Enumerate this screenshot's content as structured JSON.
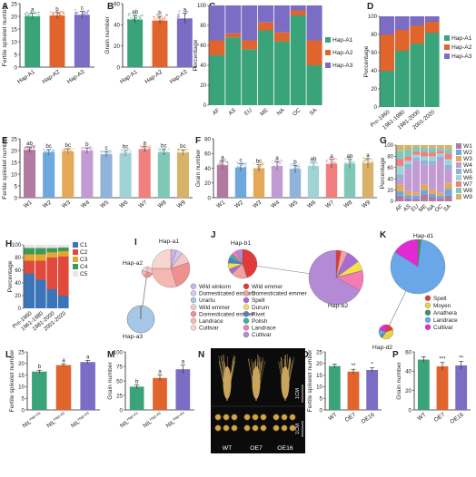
{
  "colors": {
    "hapA1": "#3aa37a",
    "hapA2": "#e0642c",
    "hapA3": "#7b6cc4",
    "W": [
      "#b07aa1",
      "#6fa8dc",
      "#e3a85a",
      "#c39bd3",
      "#8fb3d9",
      "#9fd3d6",
      "#f08080",
      "#7fc8b8",
      "#d9b26a"
    ],
    "C": [
      "#3b74b8",
      "#e04a3c",
      "#e5a52f",
      "#3c9a56",
      "#e7e7e7"
    ]
  },
  "panels": [
    {
      "id": "A",
      "label": "A",
      "type": "bar",
      "ylabel": "Fertile spikelet number",
      "categories": [
        "Hap-A1",
        "Hap-A2",
        "Hap-A3"
      ],
      "values": [
        20.0,
        20.3,
        20.6
      ],
      "errors": [
        1.2,
        1.2,
        1.4
      ],
      "sig": [
        "a",
        "b",
        "c"
      ],
      "ylim": [
        0,
        25
      ],
      "yticks": [
        0,
        5,
        10,
        15,
        20,
        25
      ],
      "colorkeys": [
        "hapA1",
        "hapA2",
        "hapA3"
      ]
    },
    {
      "id": "B",
      "label": "B",
      "type": "bar",
      "ylabel": "Grain number",
      "categories": [
        "Hap-A1",
        "Hap-A2",
        "Hap-A3"
      ],
      "values": [
        45,
        44,
        46
      ],
      "errors": [
        4,
        4,
        5
      ],
      "sig": [
        "ab",
        "b",
        "a"
      ],
      "ylim": [
        0,
        60
      ],
      "yticks": [
        0,
        20,
        40,
        60
      ],
      "colorkeys": [
        "hapA1",
        "hapA2",
        "hapA3"
      ]
    },
    {
      "id": "E",
      "label": "E",
      "type": "bar",
      "ylabel": "Fertile spikelet number",
      "categories": [
        "W1",
        "W2",
        "W3",
        "W4",
        "W5",
        "W6",
        "W7",
        "W8",
        "W9"
      ],
      "values": [
        20.3,
        19.2,
        19.6,
        19.9,
        18.4,
        18.9,
        20.6,
        19.3,
        19.1
      ],
      "errors": [
        1.2,
        1.2,
        1.2,
        1.2,
        1.2,
        1.2,
        1.2,
        1.2,
        1.2
      ],
      "sig": [
        "ab",
        "bc",
        "bc",
        "b",
        "c",
        "bc",
        "a",
        "bc",
        "bc"
      ],
      "ylim": [
        0,
        25
      ],
      "yticks": [
        0,
        5,
        10,
        15,
        20,
        25
      ],
      "colorkeys": "W"
    },
    {
      "id": "F",
      "label": "F",
      "type": "bar",
      "ylabel": "Grain number",
      "categories": [
        "W1",
        "W2",
        "W3",
        "W4",
        "W5",
        "W6",
        "W7",
        "W8",
        "W9"
      ],
      "values": [
        44,
        41,
        40,
        43,
        39,
        43,
        46,
        46,
        47
      ],
      "errors": [
        6,
        5,
        5,
        6,
        5,
        5,
        6,
        6,
        6
      ],
      "sig": [
        "a",
        "c",
        "bc",
        "a",
        "b",
        "ab",
        "a",
        "ab",
        "a"
      ],
      "ylim": [
        0,
        80
      ],
      "yticks": [
        0,
        20,
        40,
        60,
        80
      ],
      "colorkeys": "W"
    },
    {
      "id": "L",
      "label": "L",
      "type": "bar",
      "ylabel": "Fertile spikelet number",
      "categories": [
        "NIL^Hap-A1",
        "NIL^Hap-A2",
        "NIL^Hap-A3"
      ],
      "values": [
        16.5,
        19.3,
        20.6
      ],
      "errors": [
        0.6,
        0.6,
        0.7
      ],
      "sig": [
        "b",
        "a",
        "a"
      ],
      "ylim": [
        0,
        25
      ],
      "yticks": [
        0,
        5,
        10,
        15,
        20,
        25
      ],
      "colors": [
        "#3aa37a",
        "#e0642c",
        "#7b6cc4"
      ]
    },
    {
      "id": "M",
      "label": "M",
      "type": "bar",
      "ylabel": "Grain number",
      "categories": [
        "NIL^Hap-A1",
        "NIL^Hap-A2",
        "NIL^Hap-A3"
      ],
      "values": [
        40,
        55,
        70
      ],
      "errors": [
        3,
        5,
        7
      ],
      "sig": [
        "b",
        "a",
        "a"
      ],
      "ylim": [
        0,
        100
      ],
      "yticks": [
        0,
        25,
        50,
        75,
        100
      ],
      "colors": [
        "#3aa37a",
        "#e0642c",
        "#7b6cc4"
      ]
    },
    {
      "id": "O",
      "label": "O",
      "type": "bar",
      "ylabel": "Fertile spikelet number",
      "categories": [
        "WT",
        "OE7",
        "OE16"
      ],
      "values": [
        18.9,
        16.5,
        17.2
      ],
      "errors": [
        0.8,
        1.0,
        0.9
      ],
      "sig": [
        "",
        "**",
        "*"
      ],
      "ylim": [
        0,
        25
      ],
      "yticks": [
        0,
        5,
        10,
        15,
        20,
        25
      ],
      "colors": [
        "#3aa37a",
        "#e0642c",
        "#7b6cc4"
      ]
    },
    {
      "id": "P",
      "label": "P",
      "type": "bar",
      "ylabel": "Grain number",
      "categories": [
        "WT",
        "OE7",
        "OE16"
      ],
      "values": [
        52,
        45,
        46
      ],
      "errors": [
        3,
        4,
        4
      ],
      "sig": [
        "",
        "***",
        "**"
      ],
      "ylim": [
        0,
        60
      ],
      "yticks": [
        0,
        20,
        40,
        60
      ],
      "colors": [
        "#3aa37a",
        "#e0642c",
        "#7b6cc4"
      ]
    }
  ],
  "stacks": [
    {
      "id": "C",
      "label": "C",
      "ylabel": "Percentage",
      "categories": [
        "AF",
        "AS",
        "EU",
        "ME",
        "NA",
        "OC",
        "SA"
      ],
      "series": [
        {
          "name": "Hap-A1",
          "key": "hapA1",
          "values": [
            50,
            68,
            56,
            75,
            64,
            90,
            40
          ]
        },
        {
          "name": "Hap-A2",
          "key": "hapA2",
          "values": [
            15,
            4,
            9,
            8,
            9,
            5,
            25
          ]
        },
        {
          "name": "Hap-A3",
          "key": "hapA3",
          "values": [
            35,
            28,
            35,
            17,
            27,
            5,
            35
          ]
        }
      ],
      "yticks": [
        "0",
        "20",
        "40",
        "60",
        "80",
        "100"
      ]
    },
    {
      "id": "D",
      "label": "D",
      "ylabel": "Percentage",
      "categories": [
        "Pre-1960",
        "1961-1980",
        "1981-2000",
        "2001-2020"
      ],
      "series": [
        {
          "name": "Hap-A1",
          "key": "hapA1",
          "values": [
            40,
            62,
            70,
            82
          ]
        },
        {
          "name": "Hap-A2",
          "key": "hapA2",
          "values": [
            40,
            23,
            20,
            12
          ]
        },
        {
          "name": "Hap-A3",
          "key": "hapA3",
          "values": [
            20,
            15,
            10,
            6
          ]
        }
      ],
      "yticks": [
        "0",
        "20",
        "40",
        "60",
        "80",
        "100"
      ]
    },
    {
      "id": "G",
      "label": "G",
      "ylabel": "Percentage",
      "categories": [
        "AF",
        "AS",
        "EU",
        "ME",
        "NA",
        "OC",
        "SA"
      ],
      "series": [
        {
          "name": "W1",
          "values": [
            10,
            5,
            4,
            12,
            8,
            6,
            10
          ]
        },
        {
          "name": "W2",
          "values": [
            8,
            6,
            6,
            8,
            5,
            4,
            12
          ]
        },
        {
          "name": "W3",
          "values": [
            12,
            7,
            5,
            10,
            8,
            5,
            10
          ]
        },
        {
          "name": "W4",
          "values": [
            10,
            40,
            58,
            35,
            45,
            60,
            25
          ]
        },
        {
          "name": "W5",
          "values": [
            8,
            8,
            5,
            8,
            6,
            5,
            8
          ]
        },
        {
          "name": "W6",
          "values": [
            15,
            6,
            5,
            7,
            8,
            5,
            10
          ]
        },
        {
          "name": "W7",
          "values": [
            12,
            8,
            6,
            8,
            7,
            5,
            10
          ]
        },
        {
          "name": "W8",
          "values": [
            15,
            12,
            7,
            7,
            8,
            5,
            8
          ]
        },
        {
          "name": "W9",
          "values": [
            10,
            8,
            4,
            5,
            5,
            5,
            7
          ]
        }
      ],
      "yticks": [
        "0",
        "20",
        "40",
        "60",
        "80",
        "100"
      ]
    },
    {
      "id": "H",
      "label": "H",
      "ylabel": "Percentage",
      "categories": [
        "Pre-1960",
        "1961-1980",
        "1981-2000",
        "2001-2020"
      ],
      "series": [
        {
          "name": "C1",
          "values": [
            55,
            45,
            30,
            20
          ]
        },
        {
          "name": "C2",
          "values": [
            20,
            30,
            50,
            62
          ]
        },
        {
          "name": "C3",
          "values": [
            10,
            10,
            8,
            8
          ]
        },
        {
          "name": "C4",
          "values": [
            10,
            10,
            7,
            6
          ]
        },
        {
          "name": "C5",
          "values": [
            5,
            5,
            5,
            4
          ]
        }
      ],
      "yticks": [
        "0",
        "20",
        "40",
        "60",
        "80",
        "100"
      ]
    }
  ],
  "networks": [
    {
      "id": "I",
      "label": "I",
      "nodes": [
        {
          "name": "Hap-a1"
        },
        {
          "name": "Hap-a2"
        },
        {
          "name": "Hap-a3"
        }
      ],
      "legend": [
        "Wild einkorn",
        "Domesticated einkorn",
        "Urartu",
        "Wild emmer",
        "Domesticated emmer",
        "Landrace",
        "Cultivar"
      ],
      "legendColors": [
        "#c9b3e6",
        "#d4c9ec",
        "#a7c7e7",
        "#f5c6c6",
        "#f08f8f",
        "#f5b7b1",
        "#f7d6d0"
      ]
    },
    {
      "id": "J",
      "label": "J",
      "nodes": [
        {
          "name": "Hap-b1"
        },
        {
          "name": "Hap-b2"
        }
      ],
      "legend": [
        "Wild emmer",
        "Domesticated emmer",
        "Spelt",
        "Durum",
        "Rivet",
        "Polish",
        "Landrace",
        "Cultivar"
      ],
      "legendColors": [
        "#e03a3a",
        "#f3a0a0",
        "#a86bd6",
        "#f4e04a",
        "#4f7fd1",
        "#37b3a3",
        "#f57ab6",
        "#b48ad6"
      ]
    },
    {
      "id": "K",
      "label": "K",
      "nodes": [
        {
          "name": "Hap-d1"
        },
        {
          "name": "Hap-d2"
        }
      ],
      "legend": [
        "Spelt",
        "Moyen",
        "Anathera",
        "Landrace",
        "Cultivar"
      ],
      "legendColors": [
        "#e23a3a",
        "#e7d34a",
        "#3d8f5e",
        "#6aa7e8",
        "#e22ad2"
      ]
    }
  ],
  "photo": {
    "id": "N",
    "label": "N",
    "genotypes": [
      "WT",
      "OE7",
      "OE16"
    ],
    "scale": "1CM"
  }
}
